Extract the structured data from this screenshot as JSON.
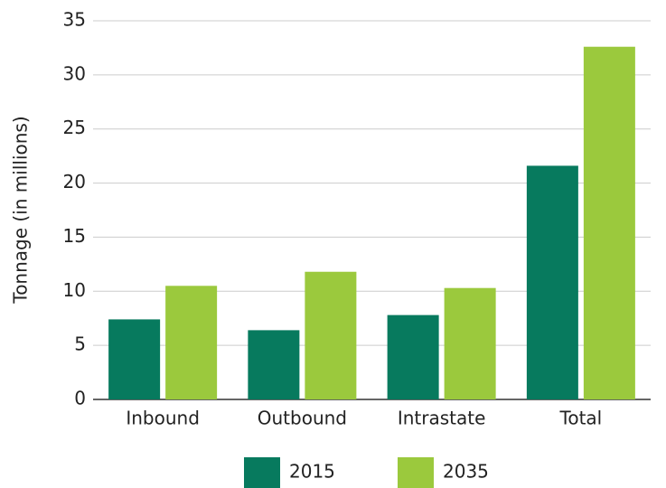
{
  "chart_data": {
    "type": "bar",
    "ylabel": "Tonnage (in millions)",
    "categories": [
      "Inbound",
      "Outbound",
      "Intrastate",
      "Total"
    ],
    "series": [
      {
        "name": "2015",
        "color": "#077a5e",
        "values": [
          7.4,
          6.4,
          7.8,
          21.6
        ]
      },
      {
        "name": "2035",
        "color": "#9bc93d",
        "values": [
          10.5,
          11.8,
          10.3,
          32.6
        ]
      }
    ],
    "ylim": [
      0,
      35
    ],
    "yticks": [
      0,
      5,
      10,
      15,
      20,
      25,
      30,
      35
    ],
    "grid": true,
    "legend": "bottom"
  }
}
